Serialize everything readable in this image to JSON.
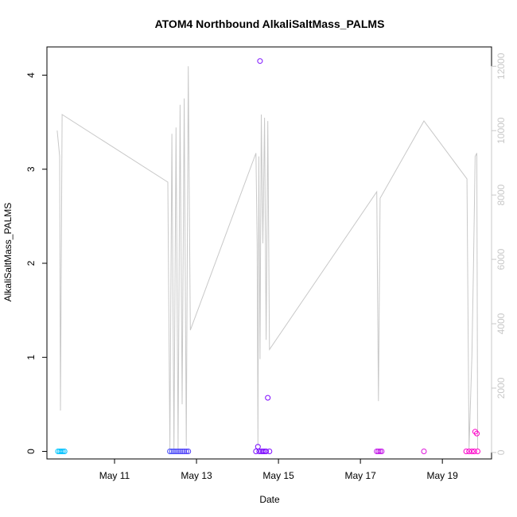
{
  "chart_data": {
    "type": "scatter",
    "title": "ATOM4 Northbound AlkaliSaltMass_PALMS",
    "xlabel": "Date",
    "ylabel": "AlkaliSaltMass_PALMS",
    "y_ticks": [
      0,
      1,
      2,
      3,
      4
    ],
    "y_lim": [
      -0.08,
      4.3
    ],
    "y2_ticks": [
      0,
      2000,
      4000,
      6000,
      8000,
      10000,
      12000
    ],
    "y2_lim": [
      -200,
      12600
    ],
    "x_tick_labels": [
      "May 11",
      "May 13",
      "May 15",
      "May 17",
      "May 19"
    ],
    "x_tick_values": [
      11.0,
      13.0,
      15.0,
      17.0,
      19.0
    ],
    "x_lim": [
      9.35,
      20.2
    ],
    "grid": false,
    "legend": "none",
    "colors": {
      "scatter_start": "#00c8ff",
      "scatter_end": "#ff00c8",
      "line": "#c8c8c8",
      "right_axis": "#c8c8c8"
    },
    "scatter_points": [
      {
        "x": 9.62,
        "y": 0.0
      },
      {
        "x": 9.66,
        "y": 0.0
      },
      {
        "x": 9.7,
        "y": 0.0
      },
      {
        "x": 9.74,
        "y": 0.0
      },
      {
        "x": 9.78,
        "y": 0.0
      },
      {
        "x": 12.35,
        "y": 0.0
      },
      {
        "x": 12.4,
        "y": 0.0
      },
      {
        "x": 12.45,
        "y": 0.0
      },
      {
        "x": 12.5,
        "y": 0.0
      },
      {
        "x": 12.55,
        "y": 0.0
      },
      {
        "x": 12.6,
        "y": 0.0
      },
      {
        "x": 12.65,
        "y": 0.0
      },
      {
        "x": 12.7,
        "y": 0.0
      },
      {
        "x": 12.75,
        "y": 0.0
      },
      {
        "x": 12.8,
        "y": 0.0
      },
      {
        "x": 14.45,
        "y": 0.0
      },
      {
        "x": 14.5,
        "y": 0.05
      },
      {
        "x": 14.53,
        "y": 0.0
      },
      {
        "x": 14.55,
        "y": 4.15
      },
      {
        "x": 14.58,
        "y": 0.0
      },
      {
        "x": 14.62,
        "y": 0.0
      },
      {
        "x": 14.66,
        "y": 0.0
      },
      {
        "x": 14.7,
        "y": 0.0
      },
      {
        "x": 14.74,
        "y": 0.57
      },
      {
        "x": 14.78,
        "y": 0.0
      },
      {
        "x": 17.4,
        "y": 0.0
      },
      {
        "x": 17.44,
        "y": 0.0
      },
      {
        "x": 17.48,
        "y": 0.0
      },
      {
        "x": 17.52,
        "y": 0.0
      },
      {
        "x": 18.55,
        "y": 0.0
      },
      {
        "x": 19.58,
        "y": 0.0
      },
      {
        "x": 19.65,
        "y": 0.0
      },
      {
        "x": 19.72,
        "y": 0.0
      },
      {
        "x": 19.78,
        "y": 0.0
      },
      {
        "x": 19.8,
        "y": 0.21
      },
      {
        "x": 19.84,
        "y": 0.19
      },
      {
        "x": 19.86,
        "y": 0.0
      }
    ],
    "line_series": [
      {
        "x": 9.6,
        "y": 10000
      },
      {
        "x": 9.66,
        "y": 9200
      },
      {
        "x": 9.68,
        "y": 1300
      },
      {
        "x": 9.72,
        "y": 10500
      },
      {
        "x": 12.3,
        "y": 8400
      },
      {
        "x": 12.35,
        "y": 100
      },
      {
        "x": 12.4,
        "y": 9900
      },
      {
        "x": 12.45,
        "y": 100
      },
      {
        "x": 12.5,
        "y": 10100
      },
      {
        "x": 12.55,
        "y": 100
      },
      {
        "x": 12.6,
        "y": 10800
      },
      {
        "x": 12.65,
        "y": 1500
      },
      {
        "x": 12.7,
        "y": 11000
      },
      {
        "x": 12.75,
        "y": 200
      },
      {
        "x": 12.8,
        "y": 12000
      },
      {
        "x": 12.85,
        "y": 3800
      },
      {
        "x": 14.45,
        "y": 9300
      },
      {
        "x": 14.48,
        "y": 6500
      },
      {
        "x": 14.5,
        "y": 200
      },
      {
        "x": 14.52,
        "y": 9200
      },
      {
        "x": 14.55,
        "y": 2900
      },
      {
        "x": 14.58,
        "y": 10500
      },
      {
        "x": 14.62,
        "y": 6500
      },
      {
        "x": 14.66,
        "y": 10400
      },
      {
        "x": 14.7,
        "y": 3500
      },
      {
        "x": 14.74,
        "y": 10300
      },
      {
        "x": 14.78,
        "y": 3200
      },
      {
        "x": 17.4,
        "y": 8100
      },
      {
        "x": 17.44,
        "y": 1600
      },
      {
        "x": 17.48,
        "y": 7900
      },
      {
        "x": 18.55,
        "y": 10300
      },
      {
        "x": 19.6,
        "y": 8500
      },
      {
        "x": 19.65,
        "y": 100
      },
      {
        "x": 19.72,
        "y": 3000
      },
      {
        "x": 19.76,
        "y": 5800
      },
      {
        "x": 19.8,
        "y": 9200
      },
      {
        "x": 19.84,
        "y": 9300
      },
      {
        "x": 19.86,
        "y": 100
      }
    ]
  }
}
